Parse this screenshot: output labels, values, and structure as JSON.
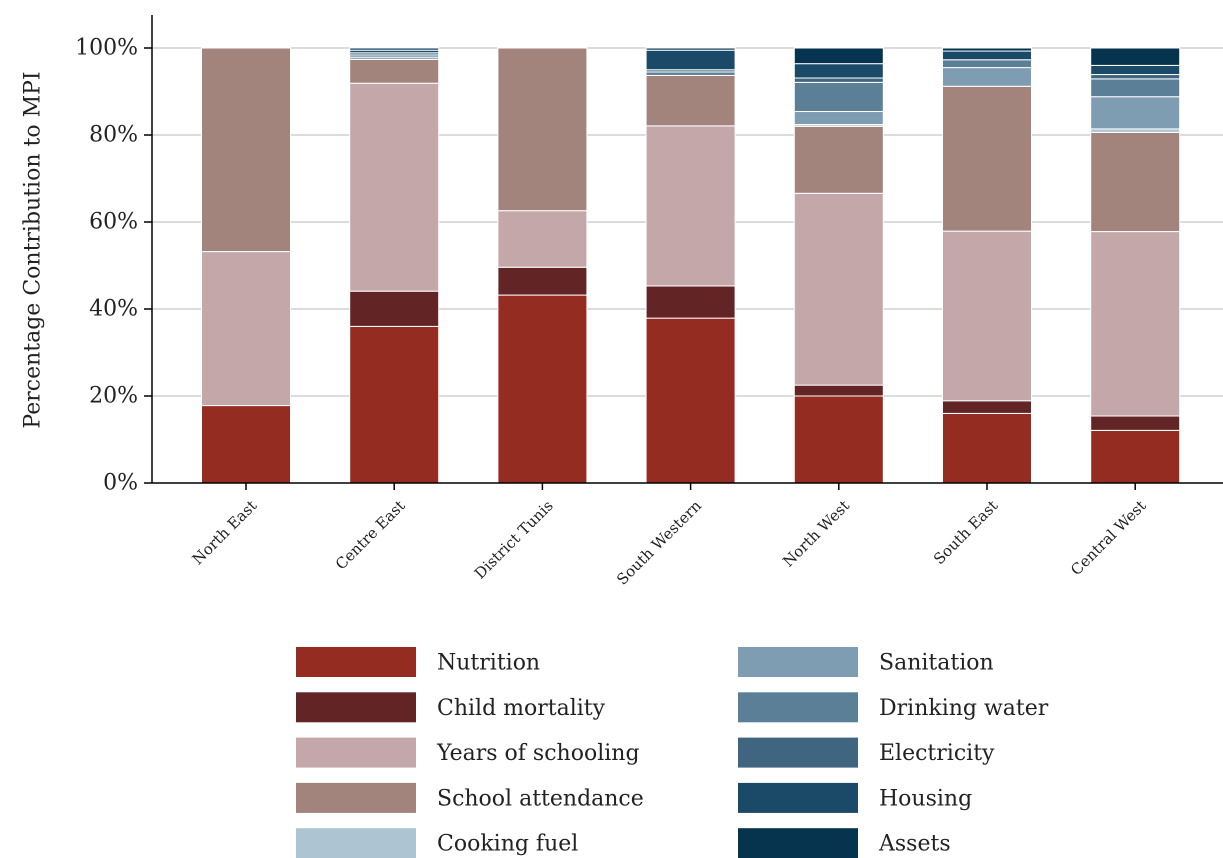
{
  "chart_data": {
    "type": "bar",
    "stacked": true,
    "ylabel": "Percentage Contribution to MPI",
    "ylim": [
      0,
      100
    ],
    "yticks": [
      "0%",
      "20%",
      "40%",
      "60%",
      "80%",
      "100%"
    ],
    "grid": true,
    "legend_position": "bottom",
    "categories": [
      "North East",
      "Centre East",
      "District Tunis",
      "South Western",
      "North West",
      "South East",
      "Central West"
    ],
    "series": [
      {
        "name": "Nutrition",
        "color": "#952c22",
        "values": [
          17.8,
          36.0,
          43.2,
          37.9,
          20.0,
          16.0,
          12.1
        ]
      },
      {
        "name": "Child mortality",
        "color": "#632426",
        "values": [
          0.0,
          8.1,
          6.4,
          7.4,
          2.5,
          2.9,
          3.3
        ]
      },
      {
        "name": "Years of schooling",
        "color": "#c4a8a9",
        "values": [
          35.4,
          47.8,
          13.0,
          36.8,
          44.1,
          39.0,
          42.4
        ]
      },
      {
        "name": "School attendance",
        "color": "#a2847d",
        "values": [
          46.8,
          5.5,
          37.4,
          11.6,
          15.4,
          33.3,
          22.8
        ]
      },
      {
        "name": "Cooking fuel",
        "color": "#adc4d3",
        "values": [
          0.0,
          0.0,
          0.0,
          0.0,
          0.4,
          0.0,
          0.8
        ]
      },
      {
        "name": "Sanitation",
        "color": "#7f9db2",
        "values": [
          0.0,
          0.5,
          0.0,
          0.0,
          3.0,
          4.3,
          7.4
        ]
      },
      {
        "name": "Drinking water",
        "color": "#5c7f98",
        "values": [
          0.0,
          0.5,
          0.0,
          0.8,
          6.7,
          1.8,
          4.1
        ]
      },
      {
        "name": "Electricity",
        "color": "#3f6580",
        "values": [
          0.0,
          0.5,
          0.0,
          0.5,
          1.0,
          0.0,
          1.0
        ]
      },
      {
        "name": "Housing",
        "color": "#1a4a68",
        "values": [
          0.0,
          0.6,
          0.0,
          4.5,
          3.3,
          2.0,
          2.1
        ]
      },
      {
        "name": "Assets",
        "color": "#06344f",
        "values": [
          0.0,
          0.5,
          0.0,
          0.5,
          3.6,
          0.7,
          4.0
        ]
      }
    ]
  }
}
